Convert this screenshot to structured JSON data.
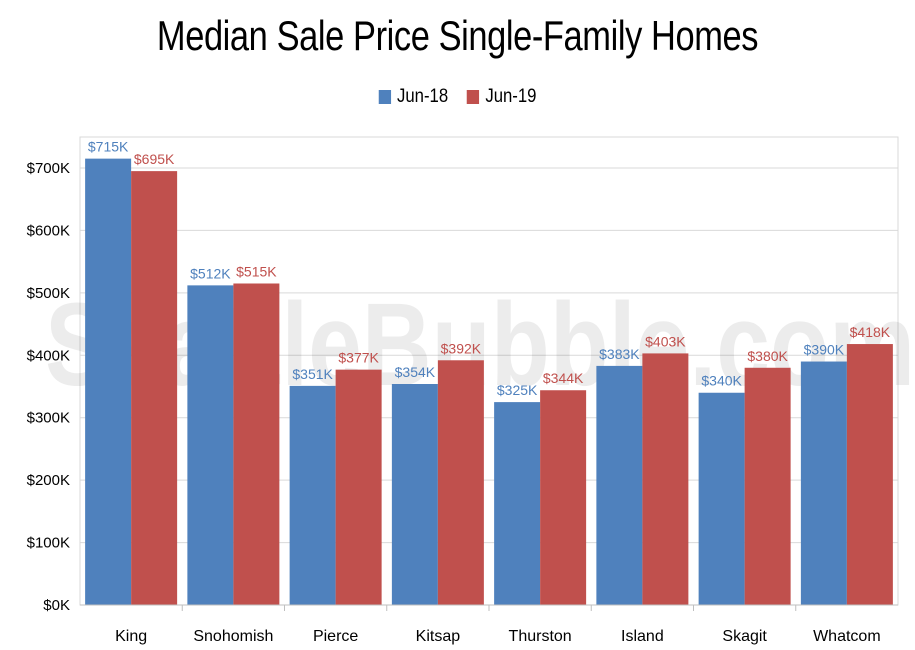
{
  "chart_data": {
    "type": "bar",
    "title": "Median Sale Price Single-Family Homes",
    "categories": [
      "King",
      "Snohomish",
      "Pierce",
      "Kitsap",
      "Thurston",
      "Island",
      "Skagit",
      "Whatcom"
    ],
    "series": [
      {
        "name": "Jun-18",
        "color": "#4f81bd",
        "values": [
          715,
          512,
          351,
          354,
          325,
          383,
          340,
          390
        ],
        "labels": [
          "$715K",
          "$512K",
          "$351K",
          "$354K",
          "$325K",
          "$383K",
          "$340K",
          "$390K"
        ]
      },
      {
        "name": "Jun-19",
        "color": "#c0504d",
        "values": [
          695,
          515,
          377,
          392,
          344,
          403,
          380,
          418
        ],
        "labels": [
          "$695K",
          "$515K",
          "$377K",
          "$392K",
          "$344K",
          "$403K",
          "$380K",
          "$418K"
        ]
      }
    ],
    "ylim": [
      0,
      700
    ],
    "yticks": [
      0,
      100,
      200,
      300,
      400,
      500,
      600,
      700
    ],
    "ytick_labels": [
      "$0K",
      "$100K",
      "$200K",
      "$300K",
      "$400K",
      "$500K",
      "$600K",
      "$700K"
    ],
    "grid": true,
    "legend": "top-center",
    "watermark": "SeattleBubble.com"
  }
}
